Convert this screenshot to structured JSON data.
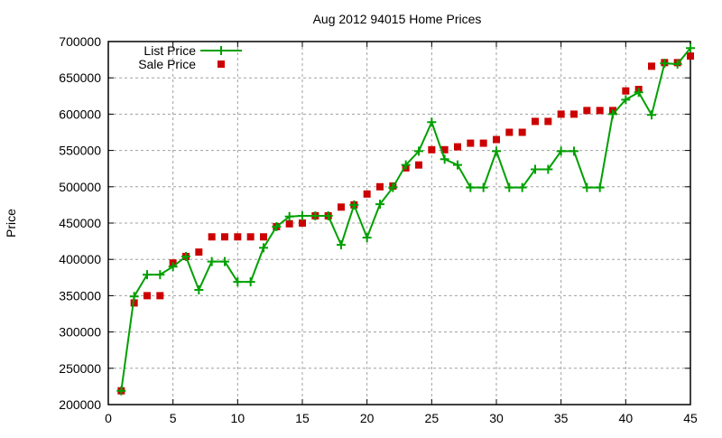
{
  "chart_data": {
    "type": "line",
    "title": "Aug 2012 94015 Home Prices",
    "xlabel": "",
    "ylabel": "Price",
    "xlim": [
      0,
      45
    ],
    "ylim": [
      200000,
      700000
    ],
    "xticks": [
      0,
      5,
      10,
      15,
      20,
      25,
      30,
      35,
      40,
      45
    ],
    "yticks": [
      200000,
      250000,
      300000,
      350000,
      400000,
      450000,
      500000,
      550000,
      600000,
      650000,
      700000
    ],
    "grid": true,
    "legend_position": "top-left",
    "x": [
      1,
      2,
      3,
      4,
      5,
      6,
      7,
      8,
      9,
      10,
      11,
      12,
      13,
      14,
      15,
      16,
      17,
      18,
      19,
      20,
      21,
      22,
      23,
      24,
      25,
      26,
      27,
      28,
      29,
      30,
      31,
      32,
      33,
      34,
      35,
      36,
      37,
      38,
      39,
      40,
      41,
      42,
      43,
      44,
      45
    ],
    "series": [
      {
        "name": "List Price",
        "style": "linespoints",
        "color": "#00a000",
        "values": [
          219000,
          349000,
          379000,
          379000,
          390000,
          404000,
          358000,
          397000,
          397000,
          369000,
          369000,
          416000,
          445000,
          459000,
          460000,
          460000,
          460000,
          420000,
          475000,
          430000,
          476000,
          499000,
          530000,
          549000,
          589000,
          538000,
          530000,
          499000,
          499000,
          549000,
          499000,
          499000,
          524000,
          524000,
          549000,
          549000,
          499000,
          499000,
          600000,
          620000,
          630000,
          599000,
          670000,
          669000,
          691000
        ]
      },
      {
        "name": "Sale Price",
        "style": "points",
        "color": "#cc0000",
        "values": [
          219000,
          340000,
          350000,
          350000,
          395000,
          404000,
          410000,
          431000,
          431000,
          431000,
          431000,
          431000,
          445000,
          449000,
          450000,
          460000,
          460000,
          472000,
          475000,
          490000,
          500000,
          501000,
          526000,
          530000,
          551000,
          551000,
          555000,
          560000,
          560000,
          565000,
          575000,
          575000,
          590000,
          590000,
          600000,
          600000,
          605000,
          605000,
          605000,
          632000,
          634000,
          666000,
          671000,
          671000,
          680000
        ]
      }
    ]
  }
}
